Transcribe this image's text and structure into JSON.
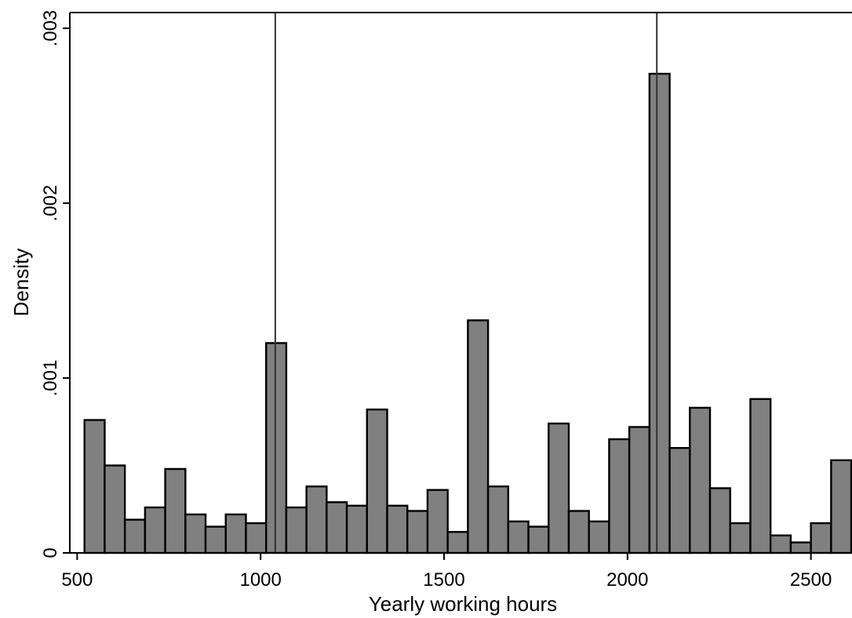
{
  "chart_data": {
    "type": "bar",
    "subtype": "histogram",
    "xlabel": "Yearly working hours",
    "ylabel": "Density",
    "xlim": [
      480,
      2612
    ],
    "ylim": [
      0,
      0.00309
    ],
    "xticks": [
      500,
      1000,
      1500,
      2000,
      2500
    ],
    "xtick_labels": [
      "500",
      "1000",
      "1500",
      "2000",
      "2500"
    ],
    "yticks": [
      0,
      0.001,
      0.002,
      0.003
    ],
    "ytick_labels": [
      "0",
      ".001",
      ".002",
      ".003"
    ],
    "bin_width": 55,
    "bin_start": 520,
    "values": [
      0.00076,
      0.0005,
      0.00019,
      0.00026,
      0.00048,
      0.00022,
      0.00015,
      0.00022,
      0.00017,
      0.0012,
      0.00026,
      0.00038,
      0.00029,
      0.00027,
      0.00082,
      0.00027,
      0.00024,
      0.00036,
      0.00012,
      0.00133,
      0.00038,
      0.00018,
      0.00015,
      0.00074,
      0.00024,
      0.00018,
      0.00065,
      0.00072,
      0.00274,
      0.0006,
      0.00083,
      0.00037,
      0.00017,
      0.00088,
      0.0001,
      6e-05,
      0.00017,
      0.00053
    ],
    "reference_lines_x": [
      1040,
      2080
    ],
    "bar_color": "#808080",
    "bar_edge_color": "#000000",
    "grid": false
  }
}
